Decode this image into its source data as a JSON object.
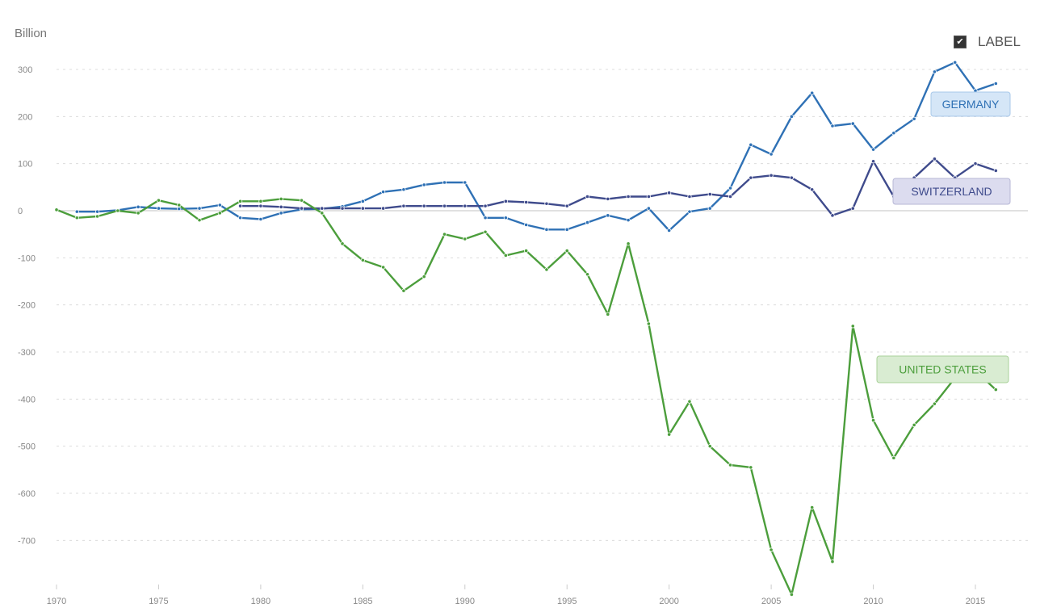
{
  "chart_data": {
    "type": "line",
    "unit_label": "Billion",
    "label_toggle": {
      "text": "LABEL",
      "checked": true
    },
    "ylim": [
      -800,
      330
    ],
    "yticks": [
      -700,
      -600,
      -500,
      -400,
      -300,
      -200,
      -100,
      0,
      100,
      200,
      300
    ],
    "xlim": [
      1970,
      2017
    ],
    "xticks": [
      1970,
      1975,
      1980,
      1985,
      1990,
      1995,
      2000,
      2005,
      2010,
      2015
    ],
    "grid": true,
    "series": [
      {
        "name": "GERMANY",
        "color": "#2f71b5",
        "label_bg": "#d5e6f7",
        "label_border": "#a8c8ea",
        "x": [
          1971,
          1972,
          1973,
          1974,
          1975,
          1976,
          1977,
          1978,
          1979,
          1980,
          1981,
          1982,
          1983,
          1984,
          1985,
          1986,
          1987,
          1988,
          1989,
          1990,
          1991,
          1992,
          1993,
          1994,
          1995,
          1996,
          1997,
          1998,
          1999,
          2000,
          2001,
          2002,
          2003,
          2004,
          2005,
          2006,
          2007,
          2008,
          2009,
          2010,
          2011,
          2012,
          2013,
          2014,
          2015,
          2016
        ],
        "values": [
          -2,
          -2,
          1,
          8,
          5,
          4,
          5,
          12,
          -15,
          -18,
          -5,
          3,
          4,
          9,
          20,
          40,
          45,
          55,
          60,
          60,
          -15,
          -15,
          -30,
          -40,
          -40,
          -25,
          -10,
          -20,
          5,
          -42,
          -2,
          5,
          48,
          140,
          120,
          200,
          250,
          180,
          185,
          130,
          165,
          195,
          295,
          315,
          255,
          270
        ]
      },
      {
        "name": "SWITZERLAND",
        "color": "#3f4b8c",
        "label_bg": "#dcdcef",
        "label_border": "#b7b7d6",
        "x": [
          1979,
          1980,
          1981,
          1982,
          1983,
          1984,
          1985,
          1986,
          1987,
          1988,
          1989,
          1990,
          1991,
          1992,
          1993,
          1994,
          1995,
          1996,
          1997,
          1998,
          1999,
          2000,
          2001,
          2002,
          2003,
          2004,
          2005,
          2006,
          2007,
          2008,
          2009,
          2010,
          2011,
          2012,
          2013,
          2014,
          2015,
          2016
        ],
        "values": [
          10,
          10,
          8,
          5,
          5,
          5,
          5,
          5,
          10,
          10,
          10,
          10,
          10,
          20,
          18,
          15,
          10,
          30,
          25,
          30,
          30,
          38,
          30,
          35,
          30,
          70,
          75,
          70,
          45,
          -10,
          5,
          105,
          30,
          70,
          110,
          70,
          100,
          85
        ]
      },
      {
        "name": "UNITED STATES",
        "color": "#4c9e3c",
        "label_bg": "#d9ecd2",
        "label_border": "#a9d29a",
        "x": [
          1970,
          1971,
          1972,
          1973,
          1974,
          1975,
          1976,
          1977,
          1978,
          1979,
          1980,
          1981,
          1982,
          1983,
          1984,
          1985,
          1986,
          1987,
          1988,
          1989,
          1990,
          1991,
          1992,
          1993,
          1994,
          1995,
          1996,
          1997,
          1998,
          1999,
          2000,
          2001,
          2002,
          2003,
          2004,
          2005,
          2006,
          2007,
          2008,
          2009,
          2010,
          2011,
          2012,
          2013,
          2014,
          2015,
          2016
        ],
        "values": [
          2,
          -15,
          -12,
          0,
          -5,
          22,
          12,
          -20,
          -5,
          20,
          20,
          25,
          22,
          -5,
          -70,
          -105,
          -120,
          -170,
          -140,
          -50,
          -60,
          -45,
          -95,
          -85,
          -125,
          -85,
          -135,
          -220,
          -70,
          -240,
          -475,
          -405,
          -500,
          -540,
          -545,
          -720,
          -815,
          -630,
          -745,
          -245,
          -445,
          -525,
          -455,
          -410,
          -355,
          -340,
          -380
        ]
      }
    ]
  }
}
